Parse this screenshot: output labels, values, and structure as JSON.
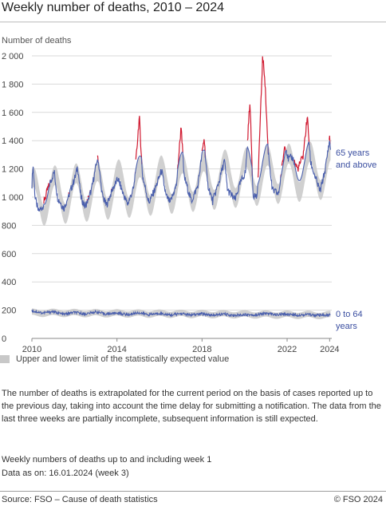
{
  "chart_data": {
    "type": "line",
    "title": "Weekly number of deaths, 2010 – 2024",
    "ylabel": "Number of deaths",
    "xlabel": "",
    "xlim": [
      2010,
      2024.1
    ],
    "ylim": [
      0,
      2000
    ],
    "y_ticks": [
      0,
      200,
      400,
      600,
      800,
      1000,
      1200,
      1400,
      1600,
      1800,
      2000
    ],
    "y_tick_labels": [
      "0",
      "200",
      "400",
      "600",
      "800",
      "1 000",
      "1 200",
      "1 400",
      "1 600",
      "1 800",
      "2 000"
    ],
    "x_ticks": [
      2010,
      2014,
      2018,
      2022,
      2024
    ],
    "x_tick_labels": [
      "2010",
      "2014",
      "2018",
      "2022",
      "2024"
    ],
    "grid": true,
    "legend_position": "bottom",
    "series": [
      {
        "name": "65 years and above",
        "color": "#4a5fad",
        "excess_color": "#d0182f",
        "description": "Weekly deaths, annual winter peaks around 1200-1300 and summer lows around 900-1000; excess peaks early 2015 (~1570), early 2017 (~1510), early 2020 (~1680), late 2020 (~1990), late 2022 (~1570), early 2024 (~1420)",
        "points": [
          [
            2010.0,
            1090
          ],
          [
            2010.05,
            1230
          ],
          [
            2010.15,
            1000
          ],
          [
            2010.3,
            900
          ],
          [
            2010.5,
            930
          ],
          [
            2010.75,
            1060
          ],
          [
            2011.05,
            1180
          ],
          [
            2011.2,
            1000
          ],
          [
            2011.5,
            920
          ],
          [
            2011.8,
            1040
          ],
          [
            2012.05,
            1150
          ],
          [
            2012.15,
            1220
          ],
          [
            2012.3,
            1000
          ],
          [
            2012.5,
            930
          ],
          [
            2012.8,
            1050
          ],
          [
            2013.1,
            1290
          ],
          [
            2013.3,
            1020
          ],
          [
            2013.5,
            940
          ],
          [
            2013.8,
            1060
          ],
          [
            2014.05,
            1130
          ],
          [
            2014.3,
            1020
          ],
          [
            2014.5,
            950
          ],
          [
            2014.8,
            1070
          ],
          [
            2015.05,
            1570
          ],
          [
            2015.2,
            1150
          ],
          [
            2015.5,
            960
          ],
          [
            2015.8,
            1060
          ],
          [
            2016.1,
            1190
          ],
          [
            2016.3,
            1010
          ],
          [
            2016.5,
            960
          ],
          [
            2016.8,
            1090
          ],
          [
            2017.02,
            1510
          ],
          [
            2017.15,
            1150
          ],
          [
            2017.5,
            970
          ],
          [
            2017.8,
            1080
          ],
          [
            2018.1,
            1420
          ],
          [
            2018.25,
            1100
          ],
          [
            2018.5,
            970
          ],
          [
            2018.8,
            1110
          ],
          [
            2019.05,
            1260
          ],
          [
            2019.2,
            1050
          ],
          [
            2019.55,
            980
          ],
          [
            2019.8,
            1100
          ],
          [
            2020.05,
            1180
          ],
          [
            2020.25,
            1680
          ],
          [
            2020.4,
            1020
          ],
          [
            2020.6,
            1000
          ],
          [
            2020.85,
            1990
          ],
          [
            2020.95,
            1850
          ],
          [
            2021.1,
            1350
          ],
          [
            2021.3,
            1050
          ],
          [
            2021.6,
            1020
          ],
          [
            2021.9,
            1380
          ],
          [
            2022.05,
            1270
          ],
          [
            2022.25,
            1280
          ],
          [
            2022.5,
            1200
          ],
          [
            2022.75,
            1290
          ],
          [
            2022.95,
            1570
          ],
          [
            2023.1,
            1250
          ],
          [
            2023.3,
            1150
          ],
          [
            2023.55,
            1040
          ],
          [
            2023.8,
            1200
          ],
          [
            2024.0,
            1420
          ],
          [
            2024.05,
            1320
          ]
        ]
      },
      {
        "name": "0 to 64 years",
        "color": "#4a5fad",
        "excess_color": "#d0182f",
        "description": "Weekly deaths roughly stable around 160-200",
        "points": [
          [
            2010.0,
            195
          ],
          [
            2010.5,
            180
          ],
          [
            2011.0,
            190
          ],
          [
            2011.5,
            170
          ],
          [
            2012.0,
            185
          ],
          [
            2012.5,
            172
          ],
          [
            2013.0,
            188
          ],
          [
            2013.5,
            172
          ],
          [
            2014.0,
            180
          ],
          [
            2014.5,
            168
          ],
          [
            2015.0,
            182
          ],
          [
            2015.5,
            168
          ],
          [
            2016.0,
            178
          ],
          [
            2016.5,
            165
          ],
          [
            2017.0,
            176
          ],
          [
            2017.5,
            165
          ],
          [
            2018.0,
            175
          ],
          [
            2018.5,
            163
          ],
          [
            2019.0,
            172
          ],
          [
            2019.5,
            162
          ],
          [
            2020.0,
            170
          ],
          [
            2020.5,
            165
          ],
          [
            2021.0,
            178
          ],
          [
            2021.5,
            168
          ],
          [
            2022.0,
            172
          ],
          [
            2022.5,
            166
          ],
          [
            2023.0,
            170
          ],
          [
            2023.5,
            162
          ],
          [
            2024.0,
            165
          ]
        ]
      }
    ],
    "expected_band": {
      "name": "Upper and lower limit of the statistically expected value",
      "color": "#c8c8c8"
    }
  },
  "series_labels": [
    {
      "line1": "65 years",
      "line2": "and above"
    },
    {
      "line1": "0 to 64",
      "line2": "years"
    }
  ],
  "note": "The number of deaths is extrapolated for the current period on the basis of cases reported up to the previous day, taking into account the time delay for submitting a notification. The data from the last three weeks are partially incomplete, subsequent information is still expected.",
  "footnote_weeks": "Weekly numbers of deaths up to and including week 1",
  "footnote_data_as_on": "Data as on: 16.01.2024 (week 3)",
  "source": "Source: FSO – Cause of death statistics",
  "copyright": "© FSO 2024"
}
